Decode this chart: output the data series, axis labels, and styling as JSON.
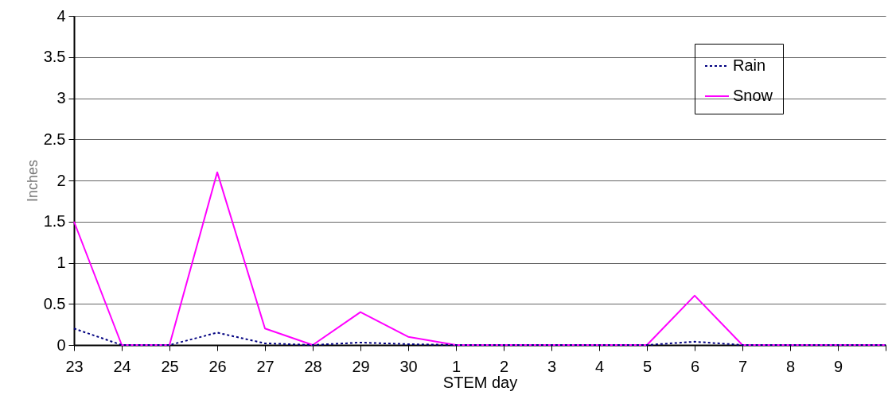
{
  "chart_data": {
    "type": "line",
    "xlabel": "STEM day",
    "ylabel": "Inches",
    "categories": [
      "23",
      "24",
      "25",
      "26",
      "27",
      "28",
      "29",
      "30",
      "1",
      "2",
      "3",
      "4",
      "5",
      "6",
      "7",
      "8",
      "9",
      null
    ],
    "series": [
      {
        "name": "Rain",
        "color": "#000080",
        "line_style": "dotted",
        "values": [
          0.2,
          0,
          0,
          0.15,
          0.02,
          0,
          0.03,
          0.01,
          0,
          0,
          0,
          0,
          0,
          0.04,
          0,
          0,
          0,
          0
        ]
      },
      {
        "name": "Snow",
        "color": "#ff00ff",
        "line_style": "solid",
        "values": [
          1.5,
          0,
          0,
          2.1,
          0.2,
          0,
          0.4,
          0.1,
          0,
          0,
          0,
          0,
          0,
          0.6,
          0,
          0,
          0,
          0
        ]
      }
    ],
    "ylim": [
      0,
      4
    ],
    "yticks": [
      0,
      0.5,
      1,
      1.5,
      2,
      2.5,
      3,
      3.5,
      4
    ],
    "grid": "y",
    "legend": "top right",
    "marker": "none"
  }
}
